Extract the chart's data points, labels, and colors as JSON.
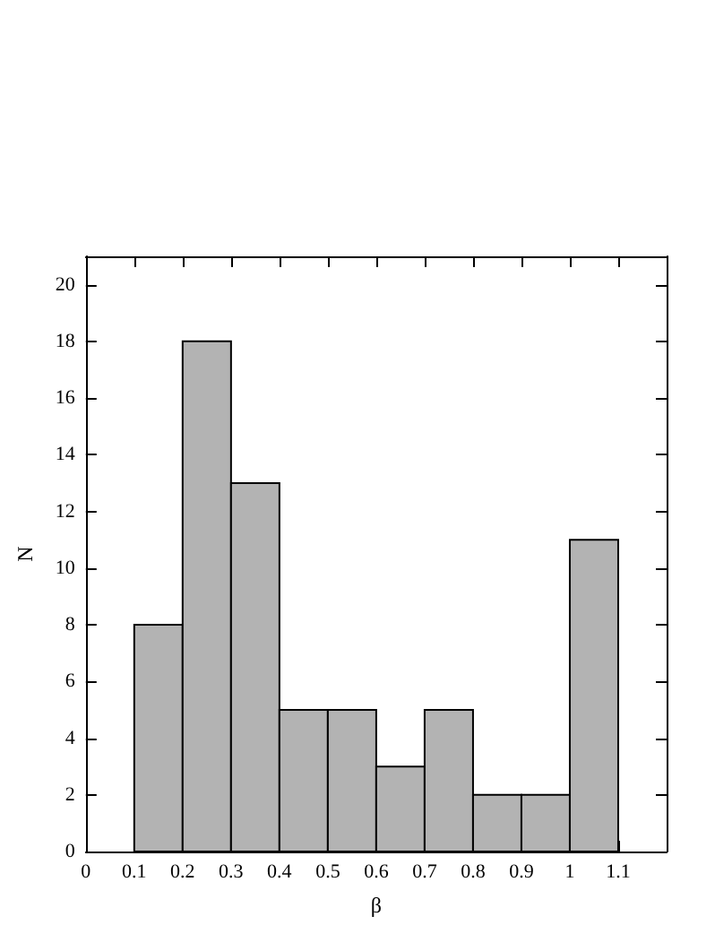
{
  "chart_data": {
    "type": "histogram",
    "xlabel": "β",
    "ylabel": "N",
    "bins": [
      0.1,
      0.2,
      0.3,
      0.4,
      0.5,
      0.6,
      0.7,
      0.8,
      0.9,
      1.0,
      1.1
    ],
    "values": [
      8,
      18,
      13,
      5,
      5,
      3,
      5,
      2,
      2,
      11
    ],
    "color": "#b3b3b3",
    "xlim": [
      0,
      1.2
    ],
    "xticks": [
      0,
      0.1,
      0.2,
      0.3,
      0.4,
      0.5,
      0.6,
      0.7,
      0.8,
      0.9,
      1,
      1.1
    ],
    "ylim": [
      0,
      21
    ],
    "yticks": [
      0,
      2,
      4,
      6,
      8,
      10,
      12,
      14,
      16,
      18,
      20
    ]
  }
}
